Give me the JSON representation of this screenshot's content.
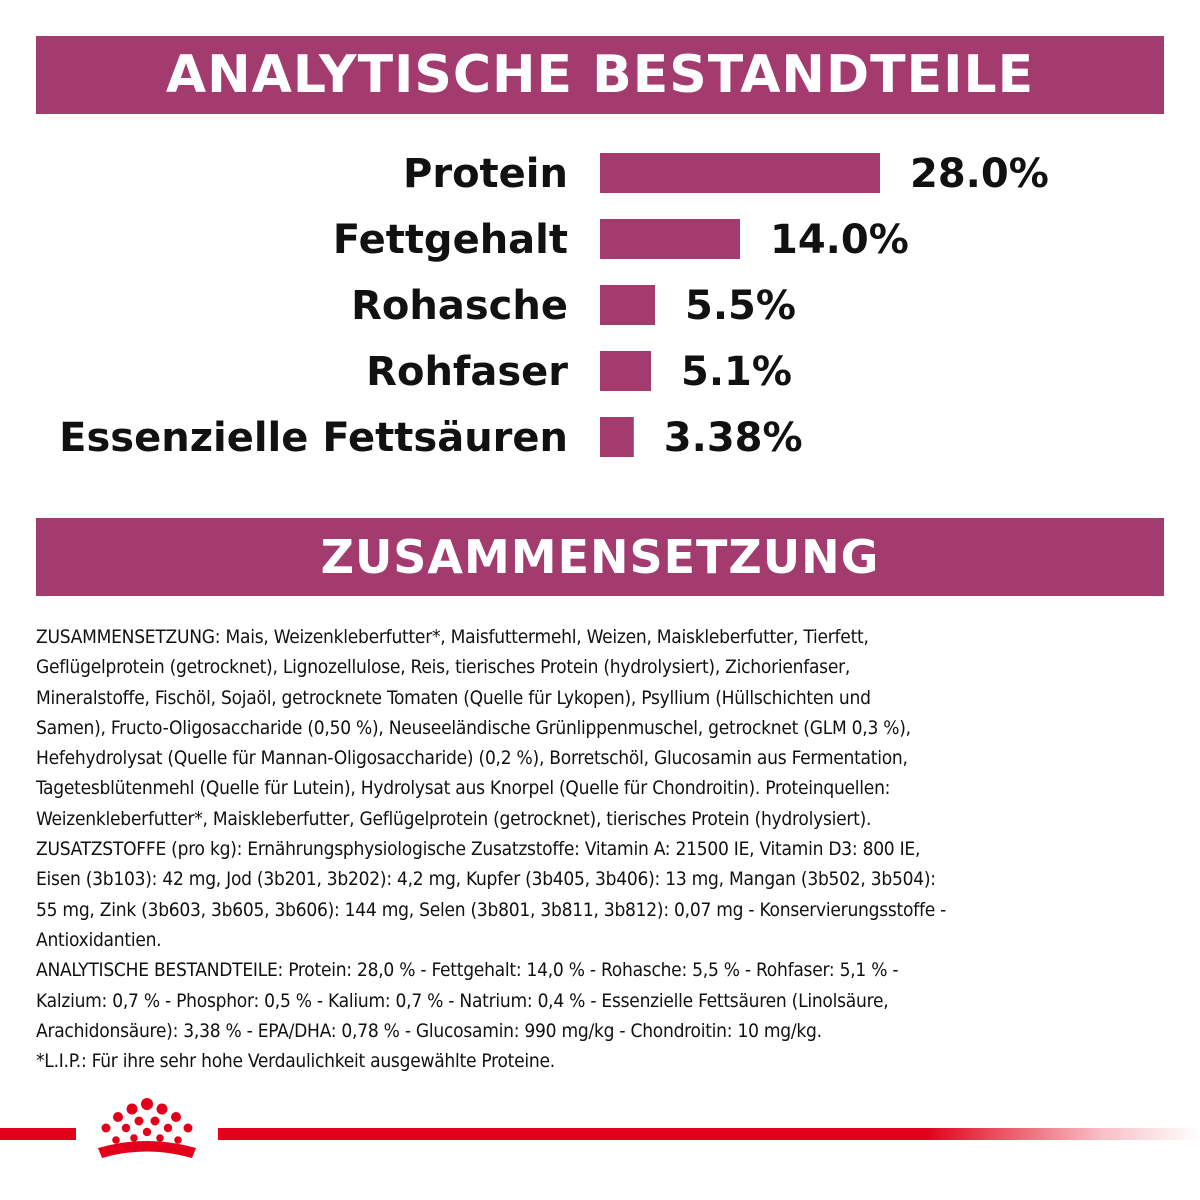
{
  "colors": {
    "brand": "#a33b6f",
    "bar": "#a33b6f",
    "logo_red": "#e2001a",
    "text": "#111111",
    "background": "#ffffff"
  },
  "sections": {
    "analytics_title": "ANALYTISCHE BESTANDTEILE",
    "composition_title": "ZUSAMMENSETZUNG"
  },
  "chart_data": {
    "type": "bar",
    "orientation": "horizontal",
    "title": "ANALYTISCHE BESTANDTEILE",
    "categories": [
      "Protein",
      "Fettgehalt",
      "Rohasche",
      "Rohfaser",
      "Essenzielle Fettsäuren"
    ],
    "values": [
      28.0,
      14.0,
      5.5,
      5.1,
      3.38
    ],
    "value_labels": [
      "28.0%",
      "14.0%",
      "5.5%",
      "5.1%",
      "3.38%"
    ],
    "unit": "%",
    "bar_color": "#a33b6f",
    "grid": false,
    "axes_visible": false
  },
  "composition_text": [
    "ZUSAMMENSETZUNG: Mais, Weizenkleberfutter*, Maisfuttermehl, Weizen, Maiskleberfutter, Tierfett,",
    "Geflügelprotein (getrocknet), Lignozellulose, Reis, tierisches Protein (hydrolysiert), Zichorienfaser,",
    "Mineralstoffe, Fischöl, Sojaöl, getrocknete Tomaten (Quelle für Lykopen), Psyllium (Hüllschichten und",
    "Samen), Fructo-Oligosaccharide (0,50 %), Neuseeländische Grünlippenmuschel, getrocknet (GLM 0,3 %),",
    "Hefehydrolysat (Quelle für Mannan-Oligosaccharide) (0,2 %), Borretschöl, Glucosamin aus Fermentation,",
    "Tagetesblütenmehl (Quelle für Lutein), Hydrolysat aus Knorpel (Quelle für Chondroitin). Proteinquellen:",
    "Weizenkleberfutter*, Maiskleberfutter, Geflügelprotein (getrocknet), tierisches Protein (hydrolysiert).",
    "ZUSATZSTOFFE (pro kg): Ernährungsphysiologische Zusatzstoffe: Vitamin A: 21500 IE, Vitamin D3: 800 IE,",
    "Eisen (3b103): 42 mg, Jod (3b201, 3b202): 4,2 mg, Kupfer (3b405, 3b406): 13 mg, Mangan (3b502, 3b504):",
    "55 mg, Zink (3b603, 3b605, 3b606): 144 mg, Selen (3b801, 3b811, 3b812): 0,07 mg - Konservierungsstoffe -",
    "Antioxidantien.",
    "ANALYTISCHE BESTANDTEILE: Protein: 28,0 % - Fettgehalt: 14,0 % - Rohasche: 5,5 % - Rohfaser: 5,1 % -",
    "Kalzium: 0,7 % - Phosphor: 0,5 % - Kalium: 0,7 % - Natrium: 0,4 % - Essenzielle Fettsäuren (Linolsäure,",
    "Arachidonsäure): 3,38 % - EPA/DHA: 0,78 % - Glucosamin: 990 mg/kg - Chondroitin: 10 mg/kg.",
    "*L.I.P.: Für ihre sehr hohe Verdaulichkeit ausgewählte Proteine."
  ],
  "logo": {
    "icon": "royal-crown-logo-icon"
  }
}
